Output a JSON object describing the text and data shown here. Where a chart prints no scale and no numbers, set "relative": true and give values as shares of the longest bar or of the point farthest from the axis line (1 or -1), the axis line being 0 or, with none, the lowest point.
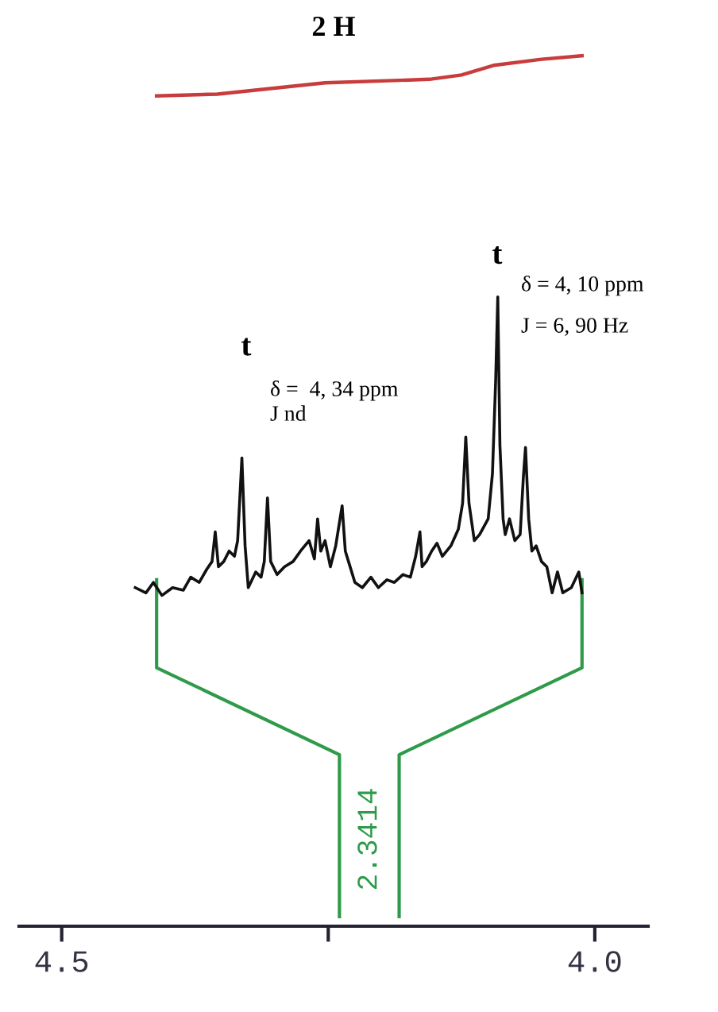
{
  "chart_data": {
    "type": "line",
    "title": "2 H",
    "relative": true,
    "tick_labels": "x",
    "line_style": "solid",
    "xlim": [
      4.54,
      3.95
    ],
    "xticks": [
      4.5,
      {
        "value": 4.25,
        "label": null
      },
      {
        "value": 4.0,
        "label": "4.0"
      }
    ],
    "series": [
      {
        "color": "#111111",
        "x": [
          4.431,
          4.421,
          4.414,
          4.406,
          4.396,
          4.386,
          4.379,
          4.371,
          4.364,
          4.359,
          4.356,
          4.353,
          4.348,
          4.343,
          4.338,
          4.335,
          4.331,
          4.328,
          4.325,
          4.318,
          4.313,
          4.31,
          4.307,
          4.304,
          4.298,
          4.291,
          4.283,
          4.276,
          4.268,
          4.263,
          4.26,
          4.257,
          4.253,
          4.248,
          4.243,
          4.237,
          4.234,
          4.231,
          4.225,
          4.218,
          4.21,
          4.203,
          4.195,
          4.188,
          4.18,
          4.173,
          4.168,
          4.164,
          4.162,
          4.158,
          4.153,
          4.148,
          4.143,
          4.135,
          4.128,
          4.124,
          4.121,
          4.118,
          4.113,
          4.108,
          4.1,
          4.096,
          4.093,
          4.091,
          4.089,
          4.086,
          4.084,
          4.08,
          4.075,
          4.07,
          4.067,
          4.065,
          4.062,
          4.059,
          4.055,
          4.05,
          4.045,
          4.04,
          4.035,
          4.03,
          4.022,
          4.015,
          4.012
        ],
        "values": [
          0.389,
          0.383,
          0.395,
          0.38,
          0.389,
          0.386,
          0.401,
          0.395,
          0.41,
          0.419,
          0.453,
          0.413,
          0.419,
          0.431,
          0.425,
          0.443,
          0.538,
          0.437,
          0.389,
          0.407,
          0.401,
          0.419,
          0.492,
          0.419,
          0.404,
          0.413,
          0.419,
          0.431,
          0.443,
          0.422,
          0.468,
          0.431,
          0.443,
          0.413,
          0.437,
          0.483,
          0.431,
          0.419,
          0.395,
          0.389,
          0.401,
          0.389,
          0.398,
          0.395,
          0.404,
          0.401,
          0.425,
          0.453,
          0.413,
          0.419,
          0.431,
          0.44,
          0.425,
          0.437,
          0.456,
          0.486,
          0.562,
          0.486,
          0.443,
          0.45,
          0.468,
          0.52,
          0.626,
          0.723,
          0.553,
          0.468,
          0.45,
          0.468,
          0.443,
          0.45,
          0.516,
          0.55,
          0.468,
          0.431,
          0.437,
          0.419,
          0.413,
          0.383,
          0.407,
          0.383,
          0.389,
          0.407,
          0.383
        ]
      },
      {
        "color": "#c83c3c",
        "x": [
          4.411,
          4.354,
          4.253,
          4.155,
          4.125,
          4.095,
          4.05,
          4.012
        ],
        "values": [
          0.954,
          0.956,
          0.969,
          0.973,
          0.978,
          0.989,
          0.996,
          1.0
        ]
      }
    ],
    "annotations": [
      "t",
      "δ =  4, 34 ppm",
      "J nd",
      "t",
      "δ = 4, 10 ppm",
      "J = 6, 90 Hz",
      "2.3414"
    ]
  }
}
